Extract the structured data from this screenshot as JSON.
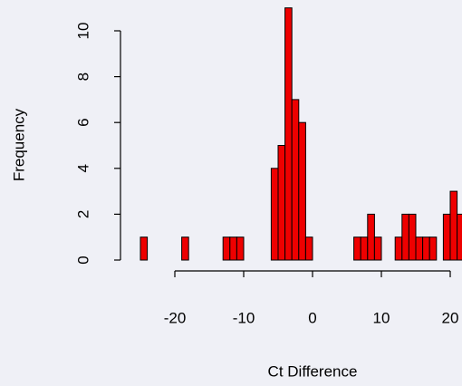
{
  "chart_data": {
    "type": "histogram",
    "x_label": "Ct Difference",
    "y_label": "Frequency",
    "bins": [
      -25,
      -24,
      -23,
      -22,
      -21,
      -20,
      -19,
      -18,
      -17,
      -16,
      -15,
      -14,
      -13,
      -12,
      -11,
      -10,
      -9,
      -8,
      -7,
      -6,
      -5,
      -4,
      -3,
      -2,
      -1,
      0,
      1,
      2,
      3,
      4,
      5,
      6,
      7,
      8,
      9,
      10,
      11,
      12,
      13,
      14,
      15,
      16,
      17,
      18,
      19,
      20,
      21,
      22
    ],
    "values": [
      1,
      0,
      0,
      0,
      0,
      0,
      1,
      0,
      0,
      0,
      0,
      0,
      1,
      1,
      1,
      0,
      0,
      0,
      0,
      4,
      5,
      11,
      7,
      6,
      1,
      0,
      0,
      0,
      0,
      0,
      0,
      1,
      1,
      2,
      1,
      0,
      0,
      1,
      2,
      2,
      1,
      1,
      1,
      0,
      2,
      3,
      2
    ],
    "color": "#ee0000",
    "xlim": [
      -27,
      22
    ],
    "ylim": [
      0,
      11
    ],
    "xticks": [
      -20,
      -10,
      0,
      10,
      20
    ],
    "yticks": [
      0,
      2,
      4,
      6,
      8,
      10
    ]
  }
}
